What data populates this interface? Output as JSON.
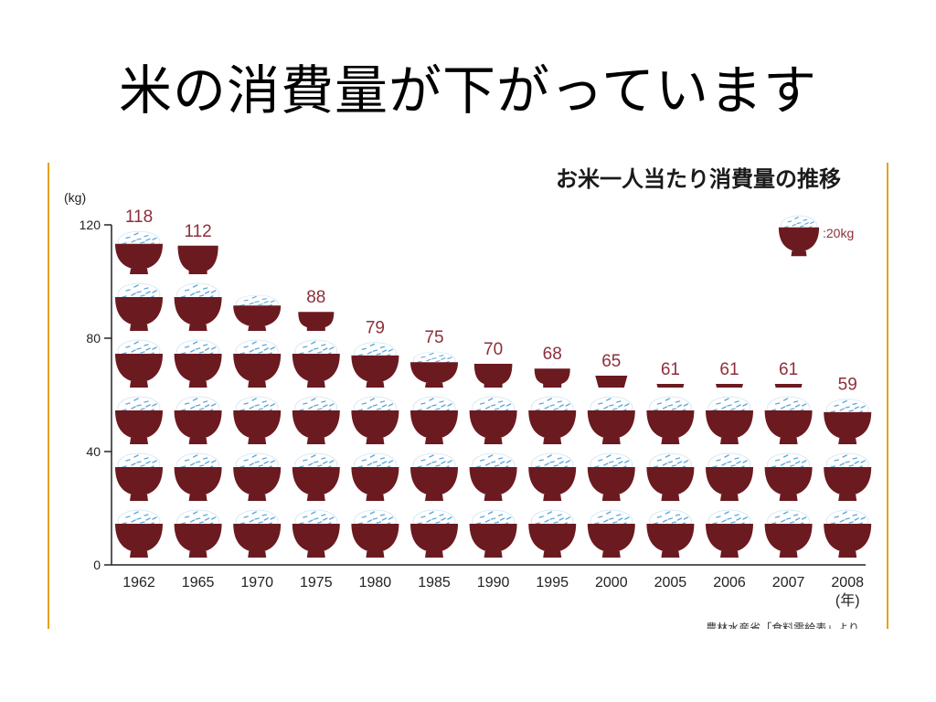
{
  "slide": {
    "title": "米の消費量が下がっています"
  },
  "colors": {
    "bowl": "#6b1a20",
    "rice": "#ffffff",
    "grain": "#5fa8d8",
    "value_label": "#8e2f3a",
    "frame_edge": "#e3a21a"
  },
  "chart_data": {
    "type": "bar",
    "title": "お米一人当たり消費量の推移",
    "ylabel": "(kg)",
    "xlabel": "(年)",
    "ylim": [
      0,
      120
    ],
    "y_ticks": [
      "0",
      "40",
      "80",
      "120"
    ],
    "categories": [
      "1962",
      "1965",
      "1970",
      "1975",
      "1980",
      "1985",
      "1990",
      "1995",
      "2000",
      "2005",
      "2006",
      "2007",
      "2008"
    ],
    "values": [
      118,
      112,
      95,
      88,
      79,
      75,
      70,
      68,
      65,
      61,
      61,
      61,
      59
    ],
    "value_labels": [
      "118",
      "112",
      "",
      "88",
      "79",
      "75",
      "70",
      "68",
      "65",
      "61",
      "61",
      "61",
      "59"
    ],
    "legend": {
      "icon": "rice-bowl-icon",
      "label": ":20kg",
      "unit_value": 20
    },
    "source": "農林水産省「食料需給表」より"
  }
}
